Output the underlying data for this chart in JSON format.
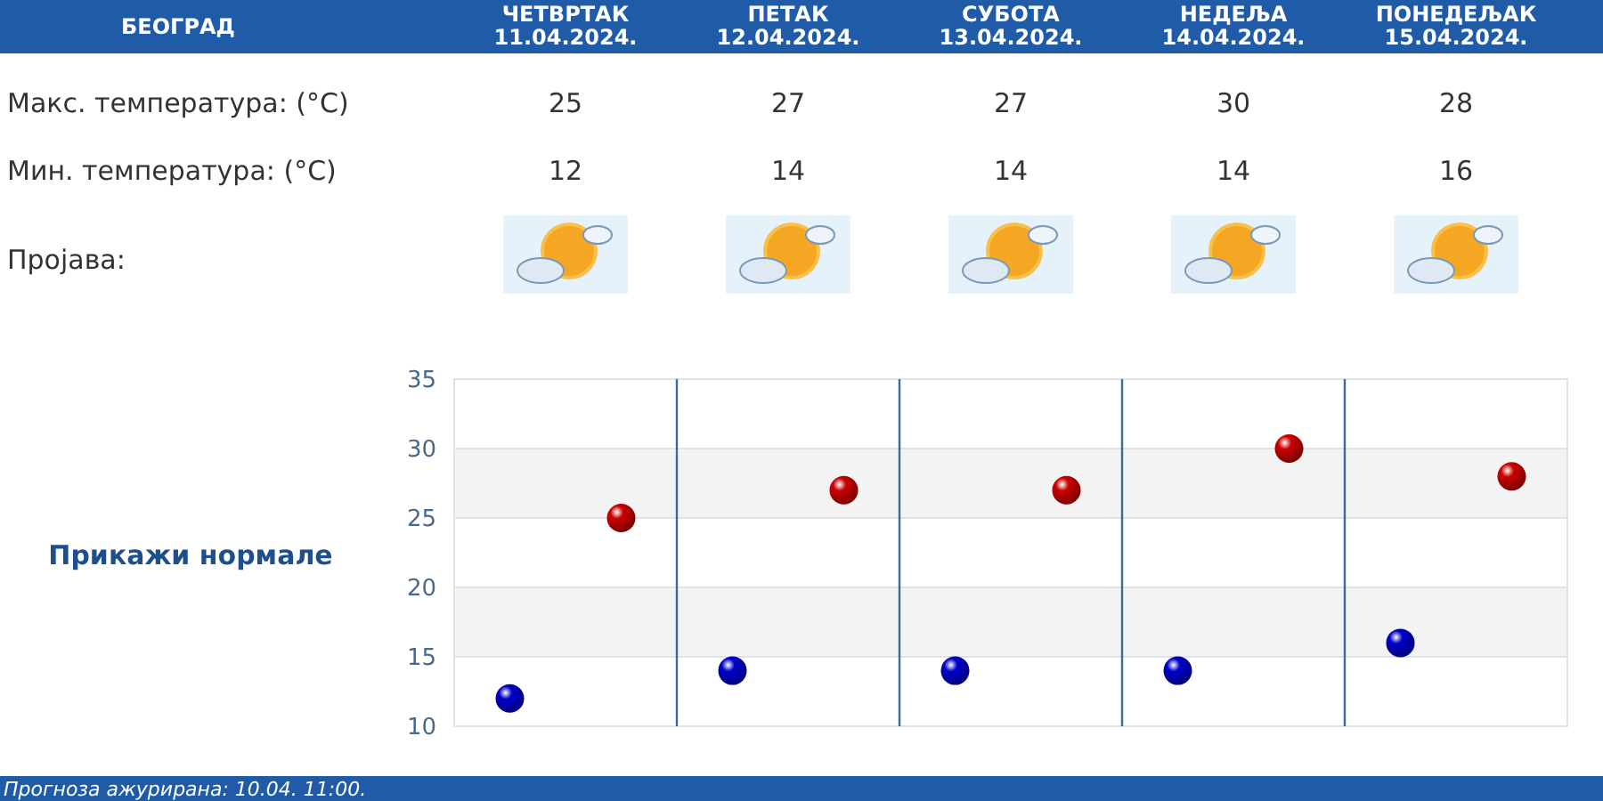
{
  "chart_data": {
    "type": "scatter",
    "title": "БЕОГРАД",
    "categories": [
      null,
      null,
      null,
      null,
      null
    ],
    "series": [
      {
        "color": "#cc0000",
        "values": [
          25,
          27,
          27,
          30,
          28
        ]
      },
      {
        "color": "#0000cc",
        "values": [
          12,
          14,
          14,
          14,
          16
        ]
      }
    ],
    "ylim": [
      10,
      35
    ],
    "yticks": [
      10,
      15,
      20,
      25,
      30,
      35
    ],
    "grid": true,
    "marker": "circle",
    "data_labels": true,
    "bands": [
      {
        "axis": "y",
        "from": 15,
        "to": 20,
        "color": "#f3f3f3"
      },
      {
        "axis": "y",
        "from": 25,
        "to": 30,
        "color": "#f3f3f3"
      }
    ],
    "annotations": [
      "ЧЕТВРТАК",
      "11.04.2024.",
      "ПЕТАК",
      "12.04.2024.",
      "СУБОТА",
      "13.04.2024.",
      "НЕДЕЉА",
      "14.04.2024.",
      "ПОНЕДЕЉАК",
      "15.04.2024.",
      "Макс. температура: (°C)",
      "Мин. температура: (°C)",
      "Пројава:",
      "Прикажи нормале",
      "Прогноза ажурирана:  10.04. 11:00."
    ]
  }
}
